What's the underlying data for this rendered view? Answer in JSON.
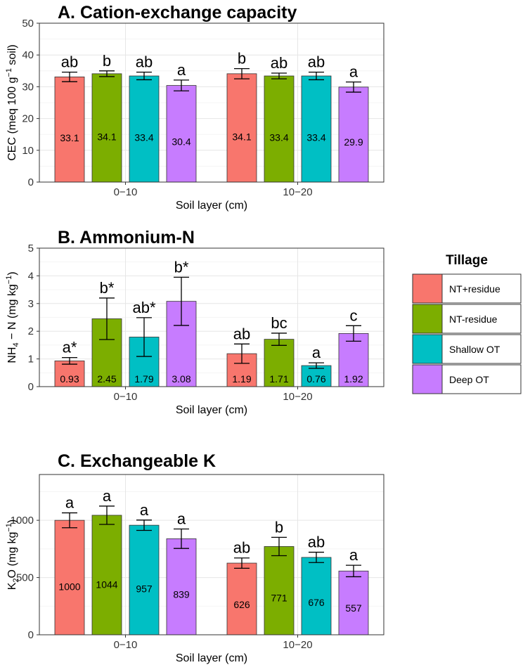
{
  "chart_data": [
    {
      "type": "bar",
      "title": "A. Cation-exchange capacity",
      "xlabel": "Soil layer (cm)",
      "ylabel_main": "CEC (meq 100 g",
      "ylabel_sup": "−1",
      "ylabel_tail": " soil)",
      "categories": [
        "0−10",
        "10−20"
      ],
      "ylim": [
        0,
        50
      ],
      "yticks": [
        0,
        10,
        20,
        30,
        40,
        50
      ],
      "label_mode": "middle",
      "series": [
        {
          "name": "NT+residue",
          "values": [
            33.1,
            34.1
          ],
          "errors": [
            1.5,
            1.6
          ],
          "labels": [
            "33.1",
            "34.1"
          ],
          "letters": [
            "ab",
            "b"
          ]
        },
        {
          "name": "NT-residue",
          "values": [
            34.1,
            33.4
          ],
          "errors": [
            0.9,
            0.9
          ],
          "labels": [
            "34.1",
            "33.4"
          ],
          "letters": [
            "b",
            "ab"
          ]
        },
        {
          "name": "Shallow OT",
          "values": [
            33.4,
            33.4
          ],
          "errors": [
            1.2,
            1.2
          ],
          "labels": [
            "33.4",
            "33.4"
          ],
          "letters": [
            "ab",
            "ab"
          ]
        },
        {
          "name": "Deep OT",
          "values": [
            30.4,
            29.9
          ],
          "errors": [
            1.7,
            1.6
          ],
          "labels": [
            "30.4",
            "29.9"
          ],
          "letters": [
            "a",
            "a"
          ]
        }
      ]
    },
    {
      "type": "bar",
      "title": "B. Ammonium-N",
      "xlabel": "Soil layer (cm)",
      "ylabel_main": "NH",
      "ylabel_sub": "4",
      "ylabel_mid": " − N (mg kg",
      "ylabel_sup": "−1",
      "ylabel_tail": ")",
      "categories": [
        "0−10",
        "10−20"
      ],
      "ylim": [
        0,
        5
      ],
      "yticks": [
        0,
        1,
        2,
        3,
        4,
        5
      ],
      "label_mode": "bottom",
      "series": [
        {
          "name": "NT+residue",
          "values": [
            0.93,
            1.19
          ],
          "errors": [
            0.12,
            0.35
          ],
          "labels": [
            "0.93",
            "1.19"
          ],
          "letters": [
            "a*",
            "ab"
          ]
        },
        {
          "name": "NT-residue",
          "values": [
            2.45,
            1.71
          ],
          "errors": [
            0.75,
            0.22
          ],
          "labels": [
            "2.45",
            "1.71"
          ],
          "letters": [
            "b*",
            "bc"
          ]
        },
        {
          "name": "Shallow OT",
          "values": [
            1.79,
            0.76
          ],
          "errors": [
            0.7,
            0.1
          ],
          "labels": [
            "1.79",
            "0.76"
          ],
          "letters": [
            "ab*",
            "a"
          ]
        },
        {
          "name": "Deep OT",
          "values": [
            3.08,
            1.92
          ],
          "errors": [
            0.87,
            0.28
          ],
          "labels": [
            "3.08",
            "1.92"
          ],
          "letters": [
            "b*",
            "c"
          ]
        }
      ]
    },
    {
      "type": "bar",
      "title": "C. Exchangeable K",
      "xlabel": "Soil layer (cm)",
      "ylabel_main": "K",
      "ylabel_sub": "2",
      "ylabel_mid": "O (mg kg",
      "ylabel_sup": "−1",
      "ylabel_tail": ")",
      "categories": [
        "0−10",
        "10−20"
      ],
      "ylim": [
        0,
        1400
      ],
      "yticks": [
        0,
        500,
        1000
      ],
      "label_mode": "middle",
      "series": [
        {
          "name": "NT+residue",
          "values": [
            1000,
            626
          ],
          "errors": [
            65,
            45
          ],
          "labels": [
            "1000",
            "626"
          ],
          "letters": [
            "a",
            "ab"
          ]
        },
        {
          "name": "NT-residue",
          "values": [
            1044,
            771
          ],
          "errors": [
            80,
            80
          ],
          "labels": [
            "1044",
            "771"
          ],
          "letters": [
            "a",
            "b"
          ]
        },
        {
          "name": "Shallow OT",
          "values": [
            957,
            676
          ],
          "errors": [
            45,
            45
          ],
          "labels": [
            "957",
            "676"
          ],
          "letters": [
            "a",
            "ab"
          ]
        },
        {
          "name": "Deep OT",
          "values": [
            839,
            557
          ],
          "errors": [
            85,
            50
          ],
          "labels": [
            "839",
            "557"
          ],
          "letters": [
            "a",
            "a"
          ]
        }
      ]
    }
  ],
  "legend": {
    "title": "Tillage",
    "placement": "right",
    "items": [
      {
        "label": "NT+residue",
        "color": "#F8766D"
      },
      {
        "label": "NT-residue",
        "color": "#7CAE00"
      },
      {
        "label": "Shallow OT",
        "color": "#00BFC4"
      },
      {
        "label": "Deep OT",
        "color": "#C77CFF"
      }
    ]
  }
}
